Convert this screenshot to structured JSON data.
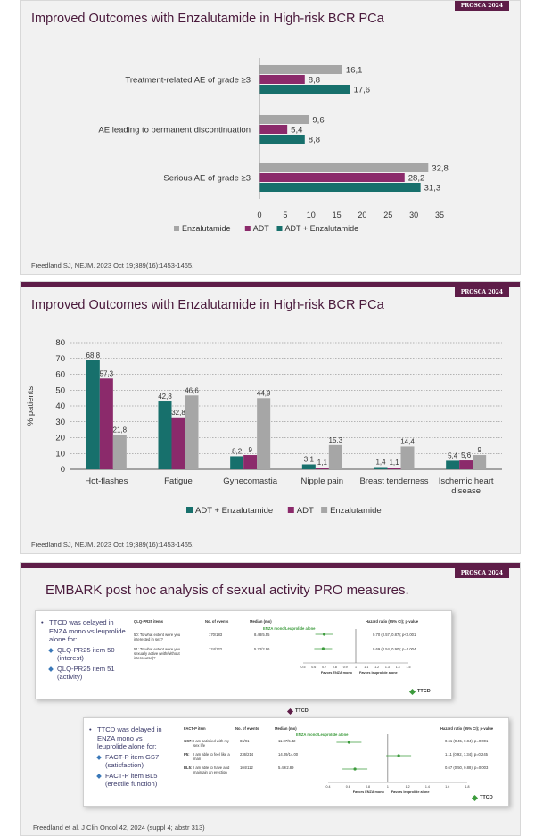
{
  "brand_label": "PROSCA 2024",
  "slide1": {
    "title": "Improved Outcomes with Enzalutamide in High-risk BCR PCa",
    "citation": "Freedland SJ, NEJM. 2023 Oct 19;389(16):1453-1465.",
    "chart_data": {
      "type": "bar",
      "orientation": "horizontal",
      "categories": [
        "Treatment-related AE of grade ≥3",
        "AE leading to permanent discontinuation",
        "Serious AE of grade ≥3"
      ],
      "series": [
        {
          "name": "Enzalutamide",
          "values": [
            16.1,
            9.6,
            32.8
          ],
          "labels": [
            "16,1",
            "9,6",
            "32,8"
          ],
          "color": "#a6a6a6"
        },
        {
          "name": "ADT",
          "values": [
            8.8,
            5.4,
            28.2
          ],
          "labels": [
            "8,8",
            "5,4",
            "28,2"
          ],
          "color": "#8b2a6b"
        },
        {
          "name": "ADT + Enzalutamide",
          "values": [
            17.6,
            8.8,
            31.3
          ],
          "labels": [
            "17,6",
            "8,8",
            "31,3"
          ],
          "color": "#17706c"
        }
      ],
      "xlim": [
        0,
        35
      ],
      "xticks": [
        "0",
        "5",
        "10",
        "15",
        "20",
        "25",
        "30",
        "35"
      ],
      "legend_position": "bottom"
    }
  },
  "slide2": {
    "title": "Improved Outcomes with Enzalutamide in High-risk BCR PCa",
    "citation": "Freedland SJ, NEJM. 2023 Oct 19;389(16):1453-1465.",
    "chart_data": {
      "type": "bar",
      "categories": [
        "Hot-flashes",
        "Fatigue",
        "Gynecomastia",
        "Nipple pain",
        "Breast tenderness",
        "Ischemic heart disease"
      ],
      "category_lines": [
        [
          "Hot-flashes"
        ],
        [
          "Fatigue"
        ],
        [
          "Gynecomastia"
        ],
        [
          "Nipple pain"
        ],
        [
          "Breast tenderness"
        ],
        [
          "Ischemic heart",
          "disease"
        ]
      ],
      "series": [
        {
          "name": "ADT + Enzalutamide",
          "values": [
            68.8,
            42.8,
            8.2,
            3.1,
            1.4,
            5.4
          ],
          "labels": [
            "68,8",
            "42,8",
            "8,2",
            "3,1",
            "1,4",
            "5,4"
          ],
          "color": "#17706c"
        },
        {
          "name": "ADT",
          "values": [
            57.3,
            32.8,
            9,
            1.1,
            1.1,
            5.6
          ],
          "labels": [
            "57,3",
            "32,8",
            "9",
            "1,1",
            "1,1",
            "5,6"
          ],
          "color": "#8b2a6b"
        },
        {
          "name": "Enzalutamide",
          "values": [
            21.8,
            46.6,
            44.9,
            15.3,
            14.4,
            9
          ],
          "labels": [
            "21,8",
            "46,6",
            "44,9",
            "15,3",
            "14,4",
            "9"
          ],
          "color": "#a6a6a6"
        }
      ],
      "ylabel": "% patients",
      "ylim": [
        0,
        80
      ],
      "yticks": [
        "0",
        "10",
        "20",
        "30",
        "40",
        "50",
        "60",
        "70",
        "80"
      ],
      "grid": "dotted-horizontal",
      "legend_position": "bottom"
    }
  },
  "slide3": {
    "title": "EMBARK post hoc analysis of sexual activity PRO measures.",
    "citation": "Freedland et al. J Clin Oncol 42, 2024 (suppl 4; abstr 313)",
    "ttcd_label": "TTCD",
    "panel1": {
      "bullet": "TTCD was delayed in ENZA mono vs leuprolide alone for:",
      "subs": [
        "QLQ-PR25 item 50 (interest)",
        "QLQ-PR25 item 51 (activity)"
      ],
      "headers": {
        "items": "QLQ-PR25 items",
        "events": "No. of events",
        "median": "Median (mo)",
        "hr": "Hazard ratio (95% CI); p-value"
      },
      "group": "ENZA mono/Leuprolide alone",
      "rows": [
        {
          "label": "50: To what extent were you interested in sex?",
          "events": "170/183",
          "median": "8.48/5.55",
          "hr": "0.70 (0.57, 0.87); p<0.001",
          "estimate": 0.7
        },
        {
          "label": "51: To what extent were you sexually active (with/without intercourse)?",
          "events": "124/122",
          "median": "5.72/2.96",
          "hr": "0.69 (0.54, 0.90); p=0.004",
          "estimate": 0.69
        }
      ],
      "axis_ticks": [
        "0.5",
        "0.6",
        "0.7",
        "0.8",
        "0.9",
        "1",
        "1.1",
        "1.2",
        "1.3",
        "1.4",
        "1.5"
      ],
      "favors_left": "Favors ENZA mono",
      "favors_right": "Favors leuprolide alone"
    },
    "panel2": {
      "bullet": "TTCD was delayed in ENZA mono vs leuprolide alone for:",
      "subs": [
        "FACT-P item GS7 (satisfaction)",
        "FACT-P item BL5 (erectile function)"
      ],
      "headers": {
        "items": "FACT-P item",
        "events": "No. of events",
        "median": "Median (mo)",
        "hr": "Hazard ratio (95% CI); p-value"
      },
      "group": "ENZA mono/Leuprolide alone",
      "rows": [
        {
          "code": "GS7:",
          "label": "I am satisfied with my sex life",
          "events": "86/91",
          "median": "11.07/5.42",
          "hr": "0.61 (0.45, 0.84); p=0.001",
          "estimate": 0.61
        },
        {
          "code": "P5:",
          "label": "I am able to feel like a man",
          "events": "236/214",
          "median": "14.09/14.00",
          "hr": "1.11 (0.92, 1.34); p=0.245",
          "estimate": 1.11
        },
        {
          "code": "BL5:",
          "label": "I am able to have and maintain an erection",
          "events": "104/112",
          "median": "5.49/2.89",
          "hr": "0.67 (0.50, 0.88); p=0.003",
          "estimate": 0.67
        }
      ],
      "axis_ticks": [
        "0.4",
        "0.6",
        "0.8",
        "1",
        "1.2",
        "1.4",
        "1.6",
        "1.8"
      ],
      "favors_left": "Favors ENZA mono",
      "favors_right": "Favors leuprolide alone"
    }
  }
}
